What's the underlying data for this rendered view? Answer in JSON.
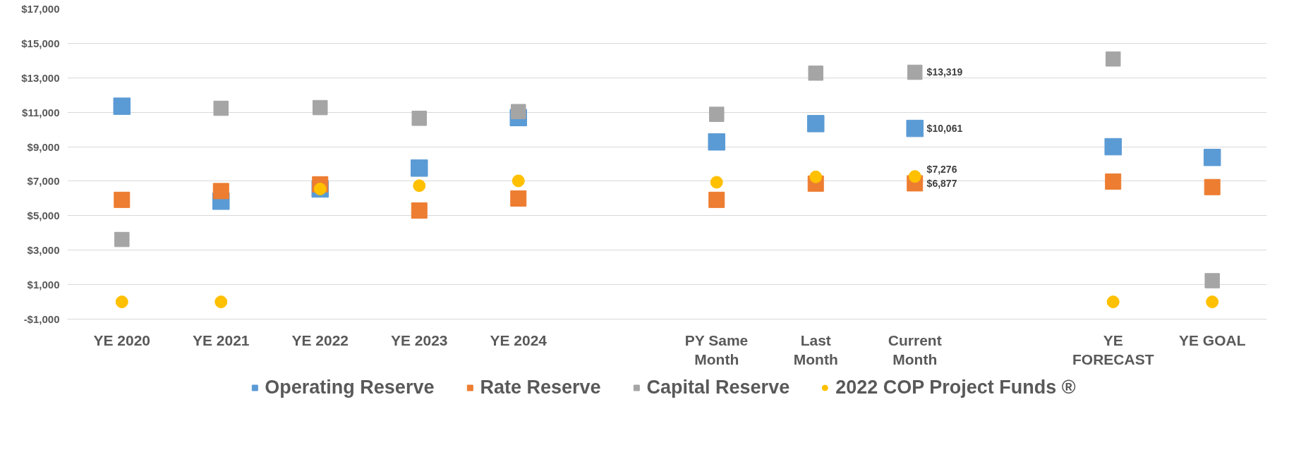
{
  "chart_data": {
    "type": "scatter",
    "categories": [
      "YE 2020",
      "YE 2021",
      "YE 2022",
      "YE 2023",
      "YE 2024",
      null,
      "PY Same Month",
      "Last Month",
      "Current Month",
      null,
      "YE FORECAST",
      "YE GOAL"
    ],
    "series": [
      {
        "name": "Operating Reserve",
        "color": "#5b9bd5",
        "marker": "square",
        "values": [
          11350,
          5840,
          6550,
          7760,
          10690,
          null,
          9280,
          10340,
          10061,
          null,
          9000,
          8380
        ],
        "value_labels": [
          null,
          null,
          null,
          null,
          null,
          null,
          null,
          null,
          "$10,061",
          null,
          null,
          null
        ]
      },
      {
        "name": "Rate Reserve",
        "color": "#ed7d31",
        "marker": "square",
        "values": [
          5920,
          6430,
          6820,
          5300,
          6000,
          null,
          5920,
          6860,
          6877,
          null,
          6980,
          6660
        ],
        "value_labels": [
          null,
          null,
          null,
          null,
          null,
          null,
          null,
          null,
          "$6,877",
          null,
          null,
          null
        ]
      },
      {
        "name": "Capital Reserve",
        "color": "#a5a5a5",
        "marker": "square",
        "values": [
          3620,
          11230,
          11270,
          10650,
          11040,
          null,
          10880,
          13270,
          13319,
          null,
          14090,
          1230
        ],
        "value_labels": [
          null,
          null,
          null,
          null,
          null,
          null,
          null,
          null,
          "$13,319",
          null,
          null,
          null
        ]
      },
      {
        "name": "2022 COP Project Funds ®",
        "color": "#ffc000",
        "marker": "circle",
        "values": [
          0,
          0,
          6550,
          6740,
          7020,
          null,
          6940,
          7250,
          7276,
          null,
          0,
          0
        ],
        "value_labels": [
          null,
          null,
          null,
          null,
          null,
          null,
          null,
          null,
          "$7,276",
          null,
          null,
          null
        ]
      }
    ],
    "ylim": [
      -1000,
      17000
    ],
    "yticks": [
      {
        "value": -1000,
        "label": "-$1,000"
      },
      {
        "value": 1000,
        "label": "$1,000"
      },
      {
        "value": 3000,
        "label": "$3,000"
      },
      {
        "value": 5000,
        "label": "$5,000"
      },
      {
        "value": 7000,
        "label": "$7,000"
      },
      {
        "value": 9000,
        "label": "$9,000"
      },
      {
        "value": 11000,
        "label": "$11,000"
      },
      {
        "value": 13000,
        "label": "$13,000"
      },
      {
        "value": 15000,
        "label": "$15,000"
      },
      {
        "value": 17000,
        "label": "$17,000"
      }
    ],
    "grid": "y",
    "legend": "bottom"
  }
}
